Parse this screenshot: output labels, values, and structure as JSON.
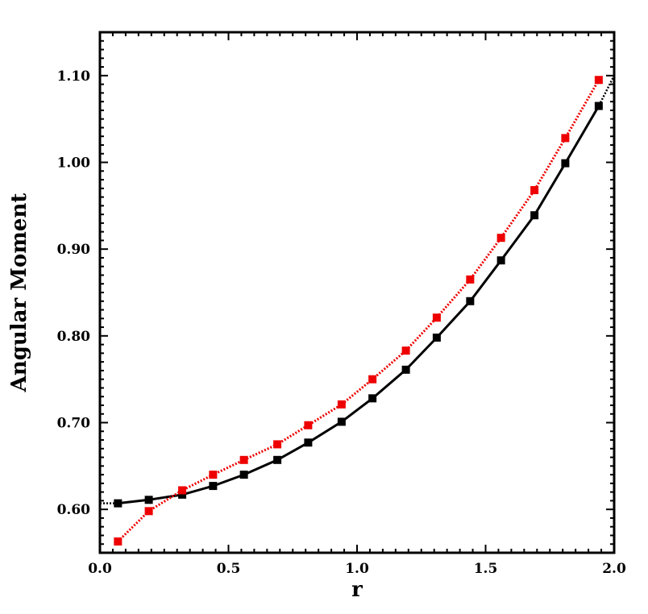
{
  "chart_data": {
    "type": "line",
    "title": "",
    "xlabel": "r",
    "ylabel": "Angular Moment",
    "xlim": [
      0.0,
      2.0
    ],
    "ylim": [
      0.55,
      1.15
    ],
    "xticks": [
      {
        "value": 0.0,
        "label": "0.0"
      },
      {
        "value": 0.5,
        "label": "0.5"
      },
      {
        "value": 1.0,
        "label": "1.0"
      },
      {
        "value": 1.5,
        "label": "1.5"
      },
      {
        "value": 2.0,
        "label": "2.0"
      }
    ],
    "yticks": [
      {
        "value": 0.6,
        "label": "0.60"
      },
      {
        "value": 0.7,
        "label": "0.70"
      },
      {
        "value": 0.8,
        "label": "0.80"
      },
      {
        "value": 0.9,
        "label": "0.90"
      },
      {
        "value": 1.0,
        "label": "1.00"
      },
      {
        "value": 1.1,
        "label": "1.10"
      }
    ],
    "grid": false,
    "legend": "none",
    "series": [
      {
        "color": "#000000",
        "line_style": "solid",
        "marker": "square",
        "x": [
          0.07,
          0.19,
          0.32,
          0.44,
          0.56,
          0.69,
          0.81,
          0.94,
          1.06,
          1.19,
          1.31,
          1.44,
          1.56,
          1.69,
          1.81,
          1.94
        ],
        "y": [
          0.607,
          0.611,
          0.617,
          0.627,
          0.64,
          0.657,
          0.677,
          0.701,
          0.728,
          0.761,
          0.798,
          0.84,
          0.887,
          0.939,
          0.999,
          1.065
        ],
        "trend_line": {
          "style": "dotted",
          "x": [
            0.0,
            0.07,
            0.19,
            0.32,
            0.44,
            0.56,
            0.69,
            0.81,
            0.94,
            1.06,
            1.19,
            1.31,
            1.44,
            1.56,
            1.69,
            1.81,
            1.94,
            2.0
          ],
          "y": [
            0.607,
            0.607,
            0.611,
            0.617,
            0.627,
            0.64,
            0.657,
            0.677,
            0.701,
            0.728,
            0.761,
            0.798,
            0.84,
            0.887,
            0.939,
            0.999,
            1.065,
            1.1
          ]
        }
      },
      {
        "color": "#ee0000",
        "line_style": "dotted",
        "marker": "square",
        "x": [
          0.07,
          0.19,
          0.32,
          0.44,
          0.56,
          0.69,
          0.81,
          0.94,
          1.06,
          1.19,
          1.31,
          1.44,
          1.56,
          1.69,
          1.81,
          1.94
        ],
        "y": [
          0.563,
          0.598,
          0.622,
          0.64,
          0.657,
          0.675,
          0.697,
          0.721,
          0.75,
          0.783,
          0.821,
          0.865,
          0.913,
          0.968,
          1.028,
          1.095
        ]
      }
    ]
  }
}
